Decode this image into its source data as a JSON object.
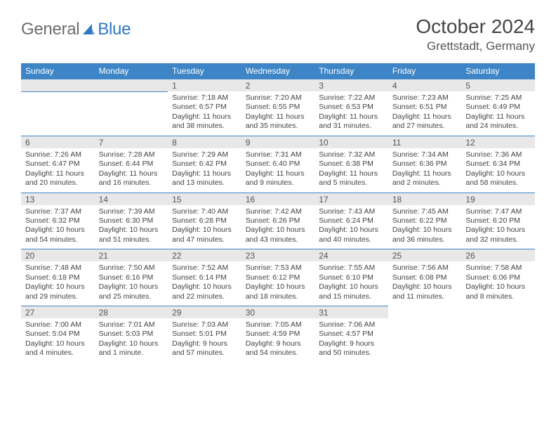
{
  "brand": {
    "text1": "General",
    "text2": "Blue",
    "text_color": "#6d6d6d",
    "accent_color": "#2f78c2"
  },
  "header": {
    "month": "October 2024",
    "location": "Grettstadt, Germany"
  },
  "palette": {
    "header_bg": "#3d85c6",
    "header_fg": "#ffffff",
    "daynum_bg": "#e8e8e8",
    "rule": "#3d85c6",
    "body_fg": "#444444"
  },
  "weekdays": [
    "Sunday",
    "Monday",
    "Tuesday",
    "Wednesday",
    "Thursday",
    "Friday",
    "Saturday"
  ],
  "weeks": [
    [
      null,
      null,
      {
        "n": "1",
        "sunrise": "7:18 AM",
        "sunset": "6:57 PM",
        "day_h": 11,
        "day_m": 38
      },
      {
        "n": "2",
        "sunrise": "7:20 AM",
        "sunset": "6:55 PM",
        "day_h": 11,
        "day_m": 35
      },
      {
        "n": "3",
        "sunrise": "7:22 AM",
        "sunset": "6:53 PM",
        "day_h": 11,
        "day_m": 31
      },
      {
        "n": "4",
        "sunrise": "7:23 AM",
        "sunset": "6:51 PM",
        "day_h": 11,
        "day_m": 27
      },
      {
        "n": "5",
        "sunrise": "7:25 AM",
        "sunset": "6:49 PM",
        "day_h": 11,
        "day_m": 24
      }
    ],
    [
      {
        "n": "6",
        "sunrise": "7:26 AM",
        "sunset": "6:47 PM",
        "day_h": 11,
        "day_m": 20
      },
      {
        "n": "7",
        "sunrise": "7:28 AM",
        "sunset": "6:44 PM",
        "day_h": 11,
        "day_m": 16
      },
      {
        "n": "8",
        "sunrise": "7:29 AM",
        "sunset": "6:42 PM",
        "day_h": 11,
        "day_m": 13
      },
      {
        "n": "9",
        "sunrise": "7:31 AM",
        "sunset": "6:40 PM",
        "day_h": 11,
        "day_m": 9
      },
      {
        "n": "10",
        "sunrise": "7:32 AM",
        "sunset": "6:38 PM",
        "day_h": 11,
        "day_m": 5
      },
      {
        "n": "11",
        "sunrise": "7:34 AM",
        "sunset": "6:36 PM",
        "day_h": 11,
        "day_m": 2
      },
      {
        "n": "12",
        "sunrise": "7:36 AM",
        "sunset": "6:34 PM",
        "day_h": 10,
        "day_m": 58
      }
    ],
    [
      {
        "n": "13",
        "sunrise": "7:37 AM",
        "sunset": "6:32 PM",
        "day_h": 10,
        "day_m": 54
      },
      {
        "n": "14",
        "sunrise": "7:39 AM",
        "sunset": "6:30 PM",
        "day_h": 10,
        "day_m": 51
      },
      {
        "n": "15",
        "sunrise": "7:40 AM",
        "sunset": "6:28 PM",
        "day_h": 10,
        "day_m": 47
      },
      {
        "n": "16",
        "sunrise": "7:42 AM",
        "sunset": "6:26 PM",
        "day_h": 10,
        "day_m": 43
      },
      {
        "n": "17",
        "sunrise": "7:43 AM",
        "sunset": "6:24 PM",
        "day_h": 10,
        "day_m": 40
      },
      {
        "n": "18",
        "sunrise": "7:45 AM",
        "sunset": "6:22 PM",
        "day_h": 10,
        "day_m": 36
      },
      {
        "n": "19",
        "sunrise": "7:47 AM",
        "sunset": "6:20 PM",
        "day_h": 10,
        "day_m": 32
      }
    ],
    [
      {
        "n": "20",
        "sunrise": "7:48 AM",
        "sunset": "6:18 PM",
        "day_h": 10,
        "day_m": 29
      },
      {
        "n": "21",
        "sunrise": "7:50 AM",
        "sunset": "6:16 PM",
        "day_h": 10,
        "day_m": 25
      },
      {
        "n": "22",
        "sunrise": "7:52 AM",
        "sunset": "6:14 PM",
        "day_h": 10,
        "day_m": 22
      },
      {
        "n": "23",
        "sunrise": "7:53 AM",
        "sunset": "6:12 PM",
        "day_h": 10,
        "day_m": 18
      },
      {
        "n": "24",
        "sunrise": "7:55 AM",
        "sunset": "6:10 PM",
        "day_h": 10,
        "day_m": 15
      },
      {
        "n": "25",
        "sunrise": "7:56 AM",
        "sunset": "6:08 PM",
        "day_h": 10,
        "day_m": 11
      },
      {
        "n": "26",
        "sunrise": "7:58 AM",
        "sunset": "6:06 PM",
        "day_h": 10,
        "day_m": 8
      }
    ],
    [
      {
        "n": "27",
        "sunrise": "7:00 AM",
        "sunset": "5:04 PM",
        "day_h": 10,
        "day_m": 4
      },
      {
        "n": "28",
        "sunrise": "7:01 AM",
        "sunset": "5:03 PM",
        "day_h": 10,
        "day_m": 1
      },
      {
        "n": "29",
        "sunrise": "7:03 AM",
        "sunset": "5:01 PM",
        "day_h": 9,
        "day_m": 57
      },
      {
        "n": "30",
        "sunrise": "7:05 AM",
        "sunset": "4:59 PM",
        "day_h": 9,
        "day_m": 54
      },
      {
        "n": "31",
        "sunrise": "7:06 AM",
        "sunset": "4:57 PM",
        "day_h": 9,
        "day_m": 50
      },
      null,
      null
    ]
  ]
}
